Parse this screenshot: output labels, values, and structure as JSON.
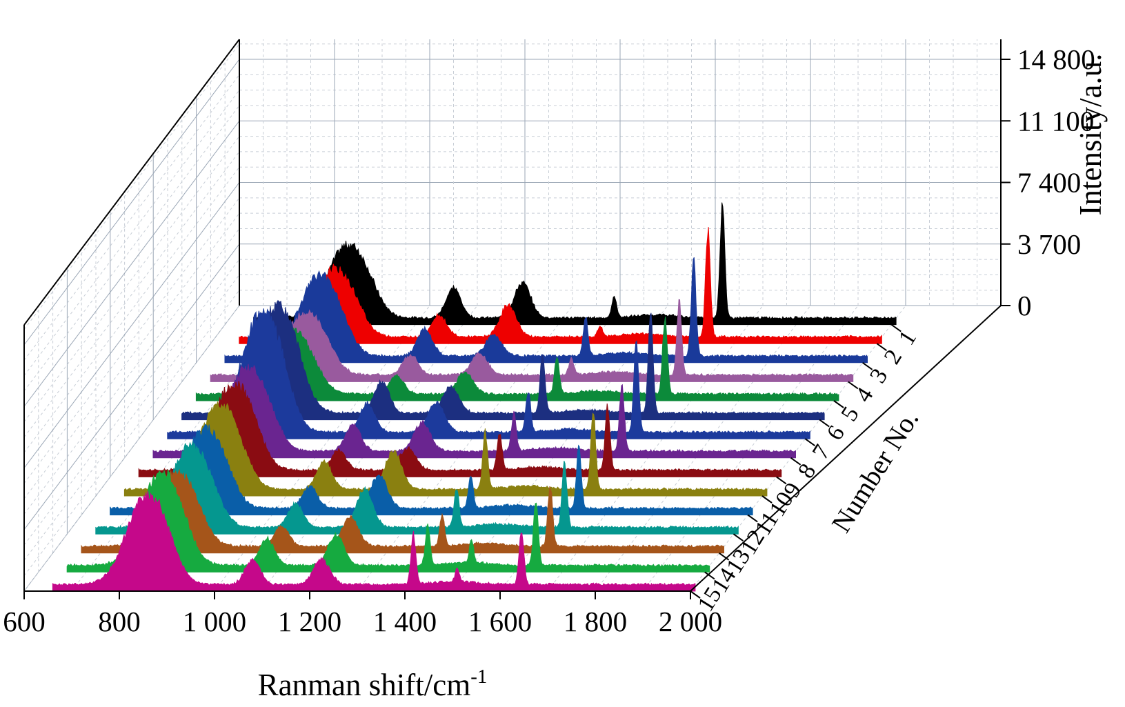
{
  "chart_data": {
    "type": "area",
    "style": "3d-waterfall",
    "xlabel": "Ranman shift/cm",
    "xlabel_superscript": "-1",
    "ylabel": "Intensity/a.u.",
    "zlabel": "Number No.",
    "x_ticks": [
      "600",
      "800",
      "1 000",
      "1 200",
      "1 400",
      "1 600",
      "1 800",
      "2 000"
    ],
    "x_tick_values": [
      600,
      800,
      1000,
      1200,
      1400,
      1600,
      1800,
      2000
    ],
    "y_ticks": [
      "0",
      "3 700",
      "7 400",
      "11 100",
      "14 800"
    ],
    "y_tick_values": [
      0,
      3700,
      7400,
      11100,
      14800
    ],
    "xlim": [
      600,
      2000
    ],
    "ylim": [
      0,
      16000
    ],
    "grid": true,
    "x_data_range": [
      660,
      2010
    ],
    "peak_positions_cm": [
      850,
      1080,
      1225,
      1418,
      1510,
      1645
    ],
    "series": [
      {
        "name": "1",
        "color": "#000000",
        "peaks": [
          3900,
          1800,
          2100,
          1250,
          0,
          6800
        ]
      },
      {
        "name": "2",
        "color": "#ee0000",
        "peaks": [
          3600,
          1300,
          1900,
          600,
          0,
          6500
        ]
      },
      {
        "name": "3",
        "color": "#1a3a9a",
        "peaks": [
          4300,
          1600,
          1250,
          2300,
          0,
          5700
        ]
      },
      {
        "name": "4",
        "color": "#995a9e",
        "peaks": [
          3300,
          1200,
          1300,
          1000,
          0,
          4400
        ]
      },
      {
        "name": "5",
        "color": "#0c8a3a",
        "peaks": [
          3500,
          1100,
          1300,
          2200,
          0,
          4600
        ]
      },
      {
        "name": "6",
        "color": "#1c2f80",
        "peaks": [
          5700,
          1900,
          1600,
          3600,
          0,
          5900
        ]
      },
      {
        "name": "7",
        "color": "#1c3a9c",
        "peaks": [
          6400,
          1700,
          1800,
          2500,
          0,
          5600
        ]
      },
      {
        "name": "8",
        "color": "#6a2590",
        "peaks": [
          4500,
          1600,
          1700,
          2300,
          0,
          4100
        ]
      },
      {
        "name": "9",
        "color": "#8a0c12",
        "peaks": [
          4600,
          1200,
          1300,
          2300,
          0,
          3900
        ]
      },
      {
        "name": "10",
        "color": "#8a8010",
        "peaks": [
          4500,
          1700,
          2300,
          3500,
          0,
          4700
        ]
      },
      {
        "name": "11",
        "color": "#0a5ea8",
        "peaks": [
          4200,
          1300,
          2000,
          2000,
          0,
          3600
        ]
      },
      {
        "name": "12",
        "color": "#05978f",
        "peaks": [
          4300,
          1400,
          2300,
          2400,
          0,
          3900
        ]
      },
      {
        "name": "13",
        "color": "#a5551a",
        "peaks": [
          4000,
          1200,
          1700,
          1900,
          0,
          3700
        ]
      },
      {
        "name": "14",
        "color": "#16aa40",
        "peaks": [
          4900,
          1600,
          1800,
          2300,
          1400,
          3900
        ]
      },
      {
        "name": "15",
        "color": "#c5088a",
        "peaks": [
          4800,
          1500,
          1500,
          3000,
          800,
          3300
        ]
      }
    ]
  }
}
